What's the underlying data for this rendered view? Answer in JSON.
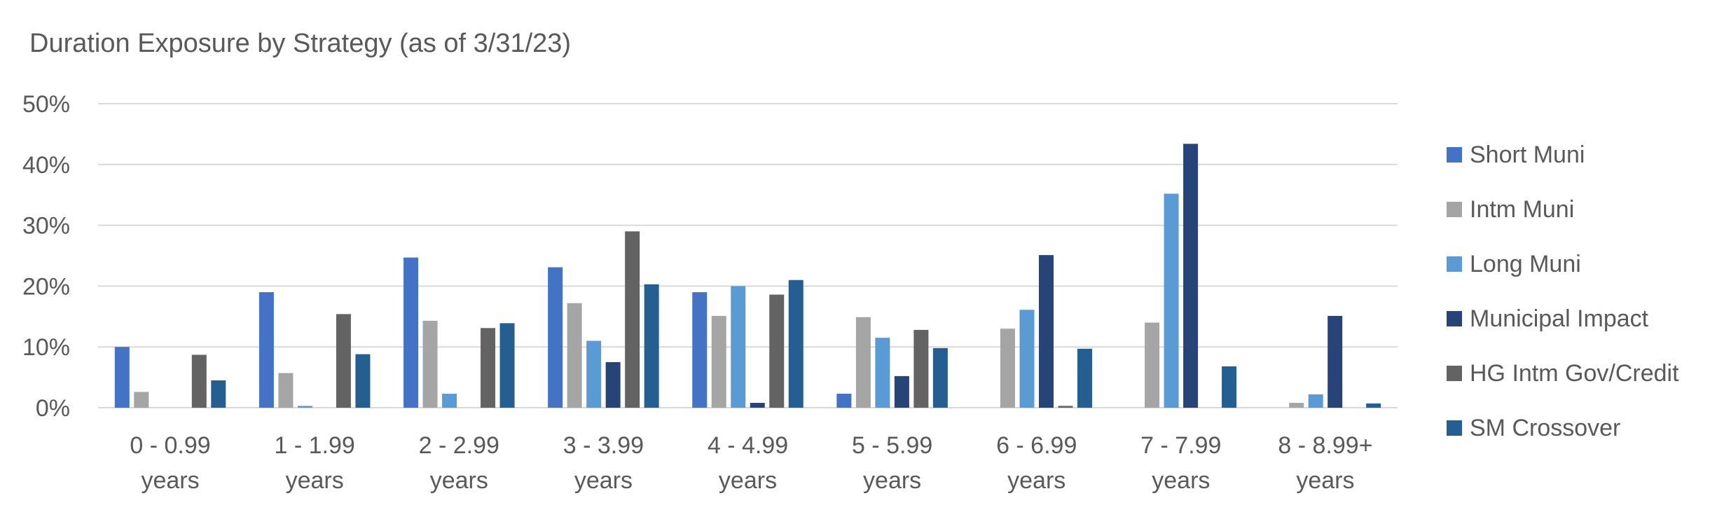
{
  "chart_data": {
    "type": "bar",
    "title": "Duration Exposure by Strategy (as of 3/31/23)",
    "xlabel": "",
    "ylabel": "",
    "ylim": [
      0,
      50
    ],
    "yticks": [
      "0%",
      "10%",
      "20%",
      "30%",
      "40%",
      "50%"
    ],
    "grid": true,
    "legend_position": "right",
    "categories": [
      [
        "0 - 0.99",
        "years"
      ],
      [
        "1 - 1.99",
        "years"
      ],
      [
        "2 - 2.99",
        "years"
      ],
      [
        "3 - 3.99",
        "years"
      ],
      [
        "4 - 4.99",
        "years"
      ],
      [
        "5 - 5.99",
        "years"
      ],
      [
        "6 - 6.99",
        "years"
      ],
      [
        "7 - 7.99",
        "years"
      ],
      [
        "8 - 8.99+",
        "years"
      ]
    ],
    "series": [
      {
        "name": "Short Muni",
        "color": "#4472c4",
        "values": [
          10.0,
          19.0,
          24.7,
          23.1,
          19.0,
          2.3,
          0,
          0,
          0
        ]
      },
      {
        "name": "Intm Muni",
        "color": "#a5a5a5",
        "values": [
          2.6,
          5.7,
          14.3,
          17.2,
          15.1,
          14.9,
          13.0,
          14.0,
          0.8
        ]
      },
      {
        "name": "Long Muni",
        "color": "#5b9bd5",
        "values": [
          0,
          0.3,
          2.3,
          11.0,
          20.0,
          11.5,
          16.1,
          35.2,
          2.2
        ]
      },
      {
        "name": "Municipal Impact",
        "color": "#264478",
        "values": [
          0,
          0,
          0,
          7.5,
          0.8,
          5.2,
          25.1,
          43.4,
          15.1
        ]
      },
      {
        "name": "HG Intm Gov/Credit",
        "color": "#636363",
        "values": [
          8.7,
          15.4,
          13.1,
          29.0,
          18.6,
          12.8,
          0.3,
          0,
          0
        ]
      },
      {
        "name": "SM Crossover",
        "color": "#255e91",
        "values": [
          4.5,
          8.8,
          13.9,
          20.3,
          21.0,
          9.8,
          9.7,
          6.8,
          0.7
        ]
      }
    ]
  }
}
